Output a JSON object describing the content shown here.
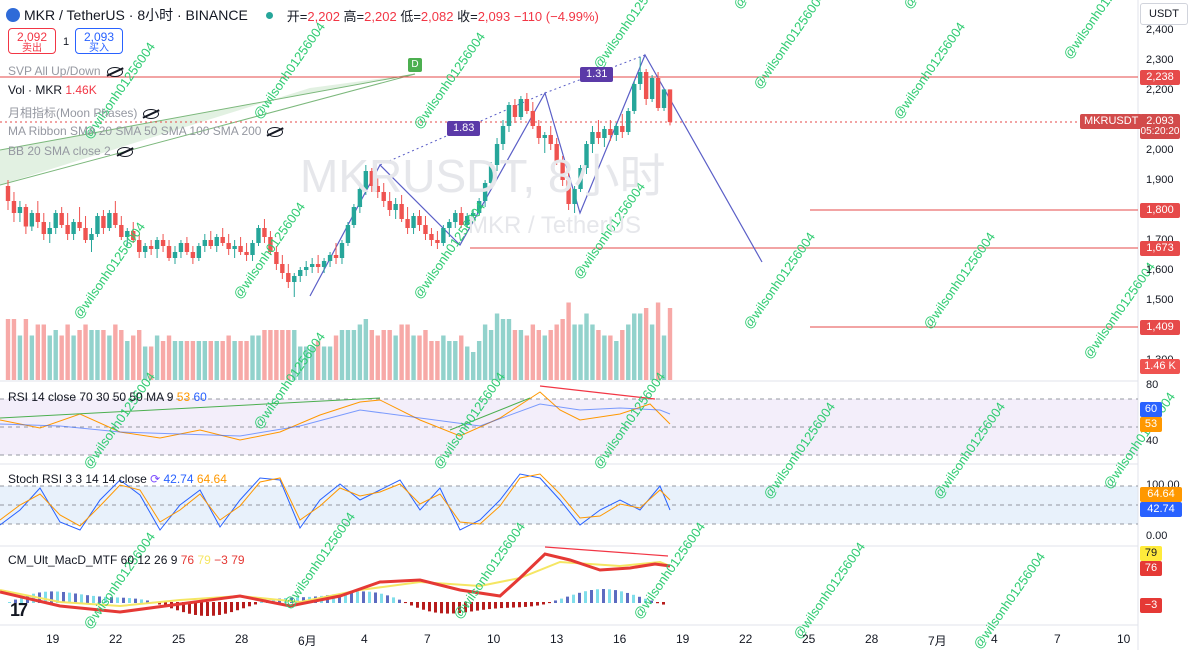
{
  "header": {
    "symbol": "MKR / TetherUS · 8小时 · BINANCE",
    "ohlc_prefix_open": "开=",
    "open": "2,202",
    "ohlc_prefix_high": " 高=",
    "high": "2,202",
    "ohlc_prefix_low": " 低=",
    "low": "2,082",
    "ohlc_prefix_close": " 收=",
    "close": "2,093",
    "change": " −110 (−4.99%)"
  },
  "trade": {
    "sell_price": "2,092",
    "sell_label": "卖出",
    "spread": "1",
    "buy_price": "2,093",
    "buy_label": "买入"
  },
  "indicators": {
    "svp": "SVP All Up/Down",
    "vol_label": "Vol · MKR",
    "vol_value": "1.46K",
    "moon": "月相指标(Moon Phases)",
    "ribbon": "MA Ribbon SMA 20 SMA 50 SMA 100 SMA 200",
    "bb": "BB 20 SMA close 2",
    "rsi_label": "RSI 14 close 70 30 50 50 MA 9",
    "rsi_v1": "53",
    "rsi_v2": "60",
    "stoch_label": "Stoch RSI 3 3 14 14 close",
    "stoch_v1": "42.74",
    "stoch_v2": "64.64",
    "macd_label": "CM_Ult_MacD_MTF 60 12 26 9",
    "macd_v1": "76",
    "macd_v2": "79",
    "macd_v3": "−3",
    "macd_v4": "79"
  },
  "watermark": {
    "main": "MKRUSDT, 8小时",
    "sub": "MKR / TetherUS"
  },
  "overlay_watermark_text": "@wilsonh01256004",
  "annotations": {
    "d_marker": "D",
    "ratio_1": "1.83",
    "ratio_2": "1.31"
  },
  "price_scale": {
    "currency": "USDT",
    "symbol_tag": "MKRUSDT",
    "countdown": "05:20:20",
    "ticks": [
      "2,400",
      "2,300",
      "2,200",
      "2,100",
      "2,000",
      "1,900",
      "1,800",
      "1,700",
      "1,600",
      "1,500",
      "1,400",
      "1,300"
    ],
    "level_labels": [
      {
        "text": "2,238",
        "color": "#e64a4a"
      },
      {
        "text": "2,093",
        "color": "#d24b4b"
      },
      {
        "text": "1,800",
        "color": "#e64a4a"
      },
      {
        "text": "1,673",
        "color": "#e64a4a"
      },
      {
        "text": "1,409",
        "color": "#e64a4a"
      },
      {
        "text": "1.46 K",
        "color": "#ef5350"
      }
    ],
    "rsi_ticks": [
      "80",
      "40"
    ],
    "rsi_labels": [
      {
        "text": "60",
        "color": "#2962ff"
      },
      {
        "text": "53",
        "color": "#ff9800"
      }
    ],
    "stoch_ticks": [
      "100.00",
      "0.00"
    ],
    "stoch_labels": [
      {
        "text": "64.64",
        "color": "#ff9800"
      },
      {
        "text": "42.74",
        "color": "#2962ff"
      }
    ],
    "macd_labels": [
      {
        "text": "79",
        "color": "#ffeb3b",
        "fg": "#131722"
      },
      {
        "text": "76",
        "color": "#e53935",
        "fg": "#ffffff"
      },
      {
        "text": "−3",
        "color": "#e53935",
        "fg": "#ffffff"
      }
    ]
  },
  "x_axis": {
    "labels": [
      "19",
      "22",
      "25",
      "28",
      "6月",
      "4",
      "7",
      "10",
      "13",
      "16",
      "19",
      "22",
      "25",
      "28",
      "7月",
      "4",
      "7",
      "10"
    ]
  },
  "colors": {
    "up": "#26a69a",
    "down": "#ef5350",
    "level": "#e64a4a",
    "pattern": "#5b5fc7",
    "rsi_bg": "#f3eefa",
    "stoch_bg": "#e8f1fb"
  },
  "chart_data": {
    "type": "candlestick",
    "title": "MKR / TetherUS · 8小时 · BINANCE",
    "ylim": [
      1300,
      2400
    ],
    "candles": [
      [
        1880,
        1900,
        1800,
        1830
      ],
      [
        1830,
        1860,
        1760,
        1790
      ],
      [
        1790,
        1830,
        1760,
        1810
      ],
      [
        1810,
        1820,
        1720,
        1745
      ],
      [
        1745,
        1800,
        1730,
        1790
      ],
      [
        1790,
        1830,
        1740,
        1760
      ],
      [
        1760,
        1790,
        1700,
        1720
      ],
      [
        1720,
        1760,
        1690,
        1740
      ],
      [
        1740,
        1800,
        1720,
        1790
      ],
      [
        1790,
        1810,
        1740,
        1750
      ],
      [
        1750,
        1790,
        1700,
        1720
      ],
      [
        1720,
        1770,
        1700,
        1760
      ],
      [
        1760,
        1810,
        1730,
        1740
      ],
      [
        1740,
        1780,
        1690,
        1700
      ],
      [
        1700,
        1740,
        1660,
        1720
      ],
      [
        1720,
        1790,
        1710,
        1780
      ],
      [
        1780,
        1800,
        1720,
        1740
      ],
      [
        1740,
        1800,
        1730,
        1790
      ],
      [
        1790,
        1830,
        1740,
        1750
      ],
      [
        1750,
        1780,
        1700,
        1710
      ],
      [
        1710,
        1740,
        1680,
        1730
      ],
      [
        1730,
        1760,
        1690,
        1700
      ],
      [
        1700,
        1720,
        1640,
        1660
      ],
      [
        1660,
        1690,
        1640,
        1680
      ],
      [
        1680,
        1700,
        1650,
        1670
      ],
      [
        1670,
        1710,
        1640,
        1700
      ],
      [
        1700,
        1720,
        1660,
        1680
      ],
      [
        1680,
        1700,
        1630,
        1640
      ],
      [
        1640,
        1680,
        1620,
        1660
      ],
      [
        1660,
        1700,
        1640,
        1690
      ],
      [
        1690,
        1710,
        1650,
        1660
      ],
      [
        1660,
        1680,
        1620,
        1640
      ],
      [
        1640,
        1690,
        1630,
        1680
      ],
      [
        1680,
        1720,
        1660,
        1700
      ],
      [
        1700,
        1730,
        1670,
        1680
      ],
      [
        1680,
        1720,
        1660,
        1710
      ],
      [
        1710,
        1740,
        1680,
        1690
      ],
      [
        1690,
        1720,
        1650,
        1670
      ],
      [
        1670,
        1700,
        1640,
        1680
      ],
      [
        1680,
        1710,
        1650,
        1660
      ],
      [
        1660,
        1690,
        1630,
        1650
      ],
      [
        1650,
        1700,
        1630,
        1690
      ],
      [
        1690,
        1750,
        1680,
        1740
      ],
      [
        1740,
        1770,
        1690,
        1710
      ],
      [
        1710,
        1730,
        1650,
        1660
      ],
      [
        1660,
        1680,
        1600,
        1620
      ],
      [
        1620,
        1650,
        1570,
        1590
      ],
      [
        1590,
        1620,
        1540,
        1560
      ],
      [
        1560,
        1590,
        1510,
        1580
      ],
      [
        1580,
        1610,
        1560,
        1600
      ],
      [
        1600,
        1630,
        1580,
        1610
      ],
      [
        1610,
        1640,
        1590,
        1620
      ],
      [
        1620,
        1650,
        1590,
        1610
      ],
      [
        1610,
        1640,
        1590,
        1630
      ],
      [
        1630,
        1660,
        1610,
        1650
      ],
      [
        1650,
        1690,
        1620,
        1640
      ],
      [
        1640,
        1700,
        1620,
        1690
      ],
      [
        1690,
        1760,
        1680,
        1750
      ],
      [
        1750,
        1820,
        1740,
        1810
      ],
      [
        1810,
        1880,
        1790,
        1870
      ],
      [
        1870,
        1950,
        1850,
        1930
      ],
      [
        1930,
        1940,
        1860,
        1880
      ],
      [
        1880,
        1910,
        1840,
        1860
      ],
      [
        1860,
        1890,
        1810,
        1830
      ],
      [
        1830,
        1860,
        1780,
        1800
      ],
      [
        1800,
        1840,
        1770,
        1820
      ],
      [
        1820,
        1850,
        1760,
        1770
      ],
      [
        1770,
        1810,
        1720,
        1740
      ],
      [
        1740,
        1790,
        1720,
        1780
      ],
      [
        1780,
        1800,
        1730,
        1750
      ],
      [
        1750,
        1780,
        1700,
        1720
      ],
      [
        1720,
        1740,
        1680,
        1700
      ],
      [
        1700,
        1730,
        1670,
        1690
      ],
      [
        1690,
        1750,
        1680,
        1740
      ],
      [
        1740,
        1770,
        1710,
        1760
      ],
      [
        1760,
        1800,
        1740,
        1790
      ],
      [
        1790,
        1810,
        1740,
        1750
      ],
      [
        1750,
        1790,
        1740,
        1780
      ],
      [
        1780,
        1800,
        1760,
        1790
      ],
      [
        1790,
        1840,
        1780,
        1830
      ],
      [
        1830,
        1900,
        1810,
        1890
      ],
      [
        1890,
        1960,
        1880,
        1950
      ],
      [
        1950,
        2040,
        1930,
        2020
      ],
      [
        2020,
        2100,
        2000,
        2080
      ],
      [
        2080,
        2160,
        2060,
        2150
      ],
      [
        2150,
        2170,
        2090,
        2110
      ],
      [
        2110,
        2180,
        2100,
        2170
      ],
      [
        2170,
        2190,
        2120,
        2130
      ],
      [
        2130,
        2160,
        2070,
        2080
      ],
      [
        2080,
        2100,
        2020,
        2040
      ],
      [
        2040,
        2060,
        1990,
        2050
      ],
      [
        2050,
        2080,
        2000,
        2020
      ],
      [
        2020,
        2040,
        1950,
        1960
      ],
      [
        1960,
        1980,
        1880,
        1900
      ],
      [
        1900,
        1930,
        1800,
        1820
      ],
      [
        1820,
        1880,
        1790,
        1870
      ],
      [
        1870,
        1950,
        1860,
        1940
      ],
      [
        1940,
        2030,
        1920,
        2020
      ],
      [
        2020,
        2080,
        1990,
        2060
      ],
      [
        2060,
        2100,
        2020,
        2040
      ],
      [
        2040,
        2080,
        2010,
        2070
      ],
      [
        2070,
        2100,
        2030,
        2050
      ],
      [
        2050,
        2090,
        2030,
        2080
      ],
      [
        2080,
        2120,
        2040,
        2060
      ],
      [
        2060,
        2140,
        2050,
        2130
      ],
      [
        2130,
        2230,
        2120,
        2220
      ],
      [
        2220,
        2310,
        2200,
        2260
      ],
      [
        2260,
        2270,
        2150,
        2170
      ],
      [
        2170,
        2250,
        2160,
        2240
      ],
      [
        2240,
        2260,
        2130,
        2140
      ],
      [
        2140,
        2200,
        2130,
        2202
      ],
      [
        2202,
        2202,
        2082,
        2093
      ]
    ]
  }
}
